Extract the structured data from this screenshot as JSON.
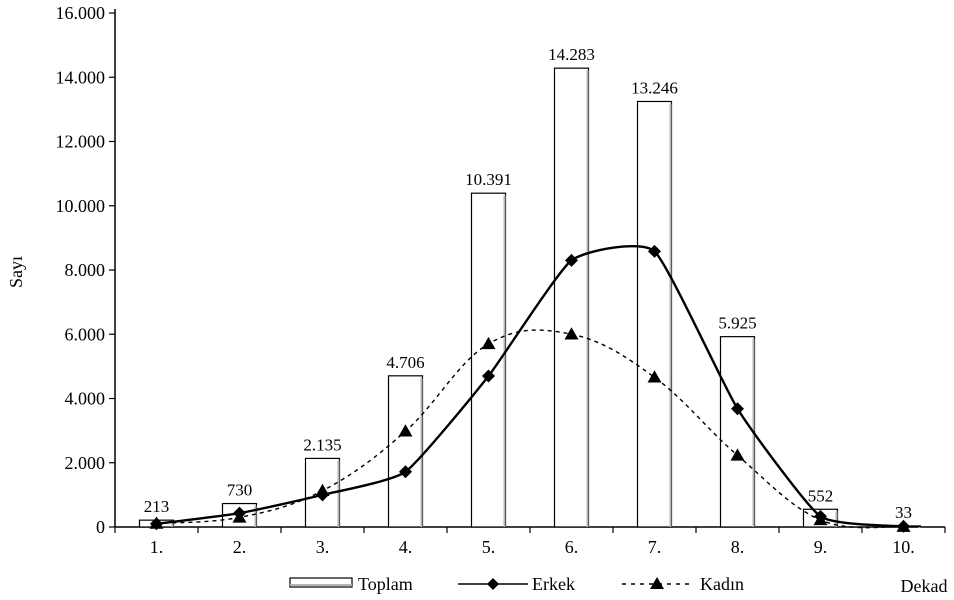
{
  "chart_data": {
    "type": "bar",
    "categories": [
      "1.",
      "2.",
      "3.",
      "4.",
      "5.",
      "6.",
      "7.",
      "8.",
      "9.",
      "10."
    ],
    "xlabel": "Dekad",
    "ylabel": "Sayı",
    "ylim": [
      0,
      16000
    ],
    "y_ticks": [
      {
        "value": 0,
        "label": "0"
      },
      {
        "value": 2000,
        "label": "2.000"
      },
      {
        "value": 4000,
        "label": "4.000"
      },
      {
        "value": 6000,
        "label": "6.000"
      },
      {
        "value": 8000,
        "label": "8.000"
      },
      {
        "value": 10000,
        "label": "10.000"
      },
      {
        "value": 12000,
        "label": "12.000"
      },
      {
        "value": 14000,
        "label": "14.000"
      },
      {
        "value": 16000,
        "label": "16.000"
      }
    ],
    "grid": false,
    "legend_position": "bottom",
    "series": [
      {
        "name": "Toplam",
        "type": "bar",
        "values": [
          213,
          730,
          2135,
          4706,
          10391,
          14283,
          13246,
          5925,
          552,
          33
        ],
        "labels": [
          "213",
          "730",
          "2.135",
          "4.706",
          "10.391",
          "14.283",
          "13.246",
          "5.925",
          "552",
          "33"
        ]
      },
      {
        "name": "Erkek",
        "type": "line",
        "marker": "diamond",
        "line_style": "solid",
        "values": [
          100,
          430,
          1000,
          1720,
          4700,
          8300,
          8580,
          3680,
          330,
          20
        ]
      },
      {
        "name": "Kadın",
        "type": "line",
        "marker": "triangle",
        "line_style": "dashed",
        "values": [
          110,
          300,
          1130,
          2980,
          5700,
          6000,
          4660,
          2230,
          220,
          10
        ]
      }
    ],
    "colors": {
      "bar_fill": "#ffffff",
      "bar_stroke": "#000000",
      "bar_shade": "#b5b5b5",
      "line": "#000000"
    }
  }
}
